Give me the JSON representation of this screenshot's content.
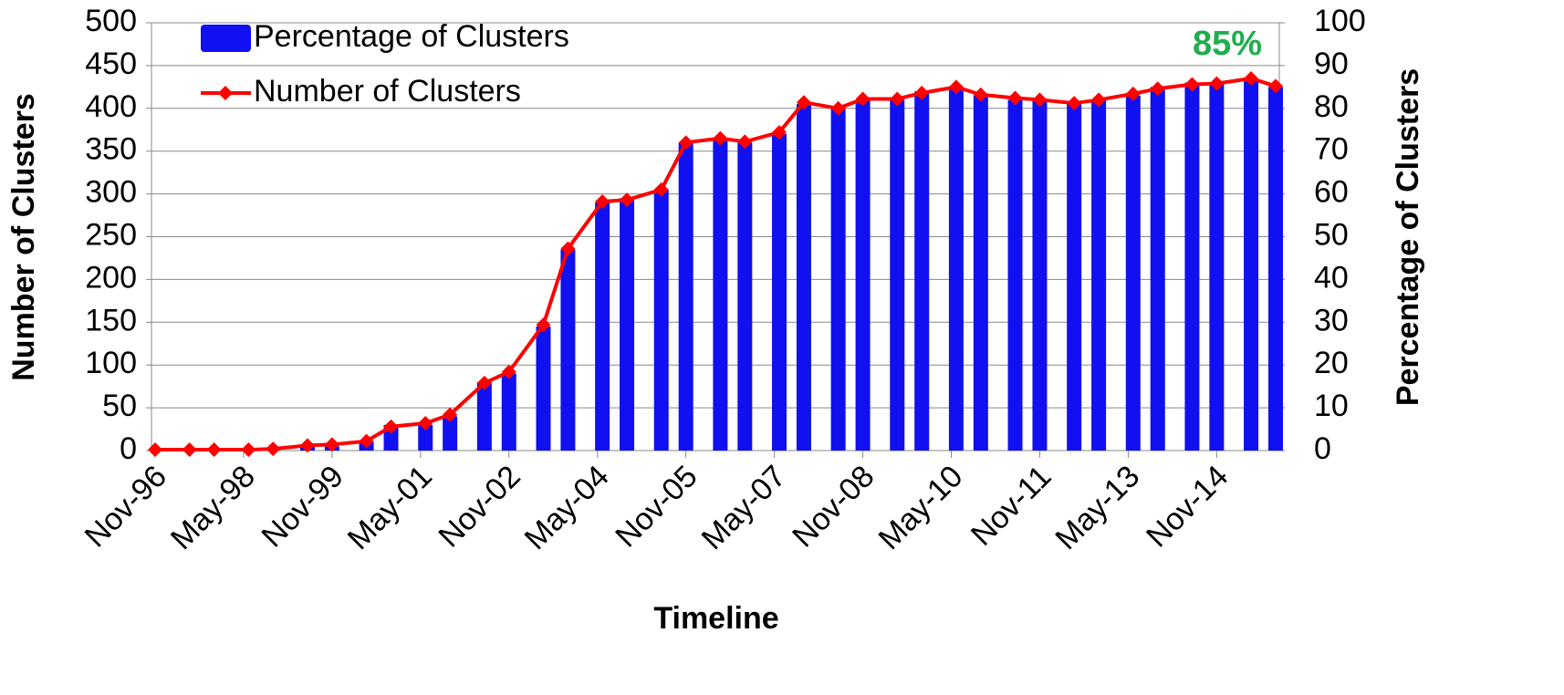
{
  "chart_data": {
    "type": "bar-line",
    "x_label": "Timeline",
    "y_label": "Number of Clusters",
    "y2_label": "Percentage of Clusters",
    "annotation": "85%",
    "x": [
      "1996-11",
      "1997-06",
      "1997-11",
      "1998-06",
      "1998-11",
      "1999-06",
      "1999-11",
      "2000-06",
      "2000-11",
      "2001-06",
      "2001-11",
      "2002-06",
      "2002-11",
      "2003-06",
      "2003-11",
      "2004-06",
      "2004-11",
      "2005-06",
      "2005-11",
      "2006-06",
      "2006-11",
      "2007-06",
      "2007-11",
      "2008-06",
      "2008-11",
      "2009-06",
      "2009-11",
      "2010-06",
      "2010-11",
      "2011-06",
      "2011-11",
      "2012-06",
      "2012-11",
      "2013-06",
      "2013-11",
      "2014-06",
      "2014-11",
      "2015-06",
      "2015-11"
    ],
    "series": [
      {
        "name": "Percentage of Clusters",
        "type": "bar",
        "axis": "y2",
        "color": "#1010f0",
        "values": [
          0,
          0,
          0,
          0,
          0,
          1,
          1,
          2,
          6,
          6,
          8,
          16,
          18,
          29,
          47,
          58,
          59,
          61,
          72,
          73,
          72,
          74,
          81,
          80,
          82,
          82,
          84,
          85,
          83,
          82,
          82,
          81,
          82,
          83,
          85,
          86,
          86,
          87,
          85
        ]
      },
      {
        "name": "Number of Clusters",
        "type": "line",
        "axis": "y",
        "color": "#ff0000",
        "values": [
          1,
          1,
          1,
          1,
          2,
          6,
          7,
          11,
          28,
          32,
          42,
          79,
          92,
          147,
          236,
          291,
          293,
          305,
          360,
          365,
          361,
          372,
          407,
          400,
          411,
          411,
          418,
          425,
          416,
          412,
          410,
          406,
          410,
          417,
          423,
          428,
          429,
          435,
          426
        ]
      }
    ],
    "xlim": [
      "1996-11",
      "2015-11"
    ],
    "xticks": [
      {
        "value": "1996-11",
        "label": "Nov-96"
      },
      {
        "value": "1998-05",
        "label": "May-98"
      },
      {
        "value": "1999-11",
        "label": "Nov-99"
      },
      {
        "value": "2001-05",
        "label": "May-01"
      },
      {
        "value": "2002-11",
        "label": "Nov-02"
      },
      {
        "value": "2004-05",
        "label": "May-04"
      },
      {
        "value": "2005-11",
        "label": "Nov-05"
      },
      {
        "value": "2007-05",
        "label": "May-07"
      },
      {
        "value": "2008-11",
        "label": "Nov-08"
      },
      {
        "value": "2010-05",
        "label": "May-10"
      },
      {
        "value": "2011-11",
        "label": "Nov-11"
      },
      {
        "value": "2013-05",
        "label": "May-13"
      },
      {
        "value": "2014-11",
        "label": "Nov-14"
      }
    ],
    "ylim": [
      0,
      500
    ],
    "yticks": [
      0,
      50,
      100,
      150,
      200,
      250,
      300,
      350,
      400,
      450,
      500
    ],
    "y2lim": [
      0,
      100
    ],
    "y2ticks": [
      0,
      10,
      20,
      30,
      40,
      50,
      60,
      70,
      80,
      90,
      100
    ],
    "grid": true,
    "legend": "upper left"
  }
}
